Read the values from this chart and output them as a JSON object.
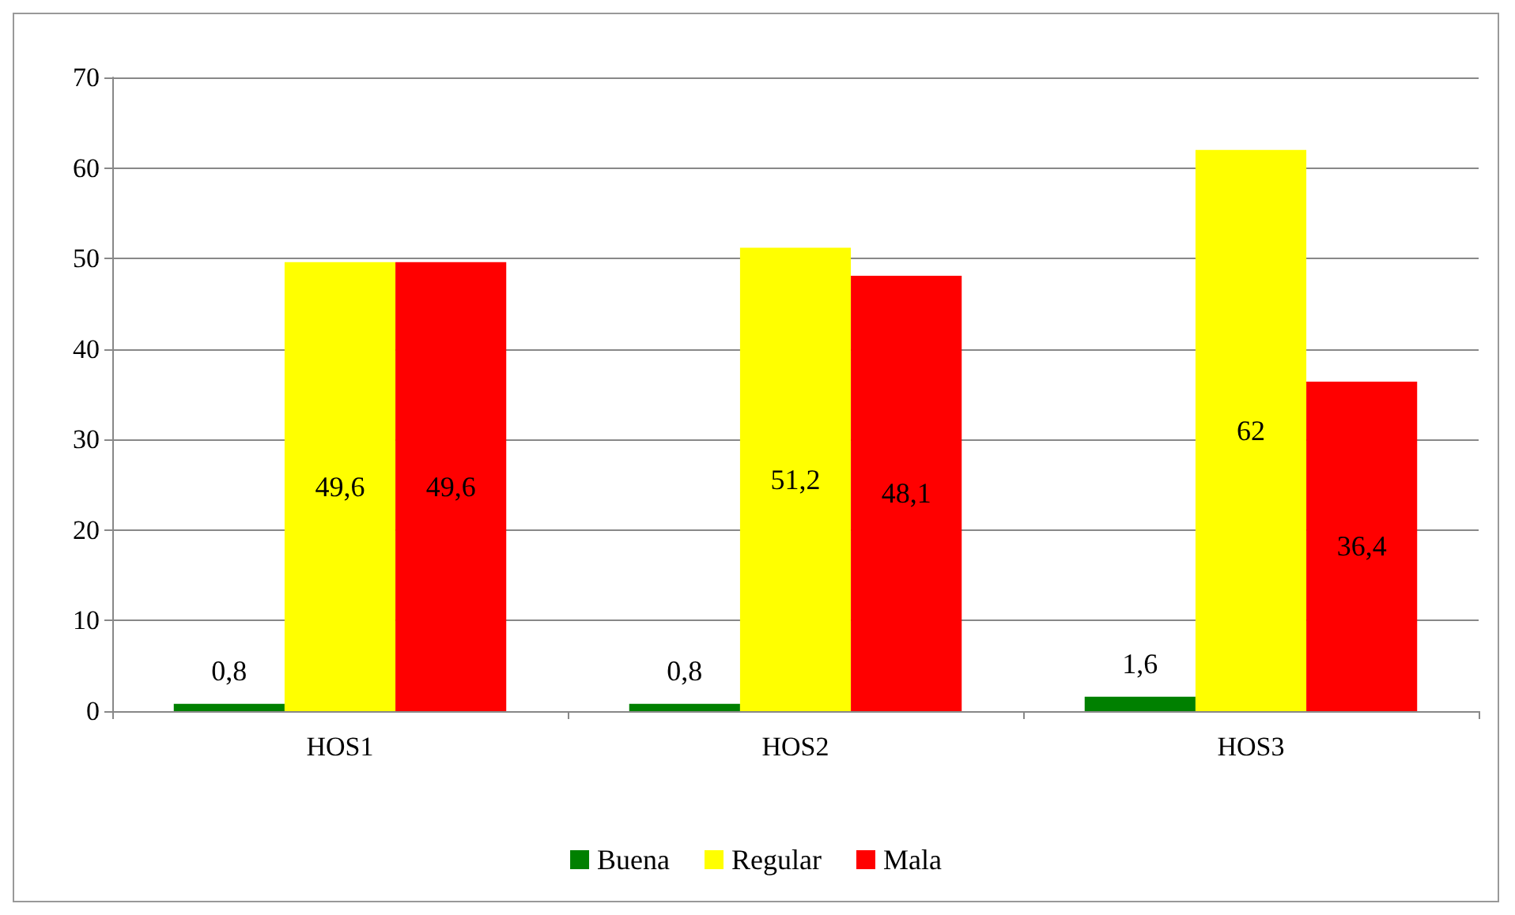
{
  "chart_data": {
    "type": "bar",
    "categories": [
      "HOS1",
      "HOS2",
      "HOS3"
    ],
    "series": [
      {
        "name": "Buena",
        "color": "#008000",
        "values": [
          0.8,
          0.8,
          1.6
        ],
        "value_labels": [
          "0,8",
          "0,8",
          "1,6"
        ]
      },
      {
        "name": "Regular",
        "color": "#ffff00",
        "values": [
          49.6,
          51.2,
          62
        ],
        "value_labels": [
          "49,6",
          "51,2",
          "62"
        ]
      },
      {
        "name": "Mala",
        "color": "#ff0000",
        "values": [
          49.6,
          48.1,
          36.4
        ],
        "value_labels": [
          "49,6",
          "48,1",
          "36,4"
        ]
      }
    ],
    "ylim": [
      0,
      70
    ],
    "yticks": [
      0,
      10,
      20,
      30,
      40,
      50,
      60,
      70
    ],
    "grid": "y",
    "legend": "bottom"
  }
}
